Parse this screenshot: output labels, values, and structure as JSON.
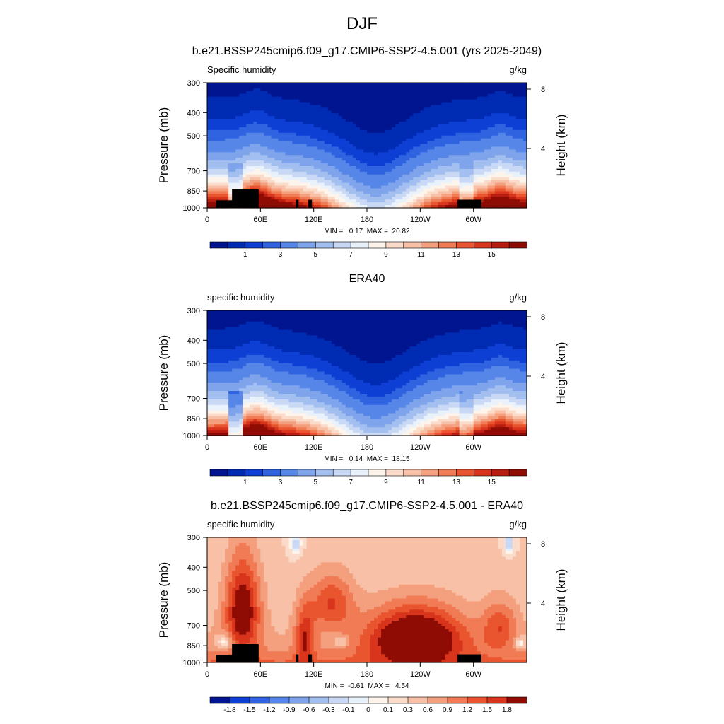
{
  "page_title": "DJF",
  "colors": {
    "positive_ramp": [
      "#fdf4ec",
      "#fbdccb",
      "#f8c0a6",
      "#f49f7d",
      "#f07b55",
      "#e9552f",
      "#d8351c",
      "#b81e10",
      "#8e0c04",
      "#7a0000"
    ],
    "negative_ramp": [
      "#e9f1fb",
      "#c8d8f5",
      "#a3bff0",
      "#7fa4ec",
      "#5686e8",
      "#2f63e0",
      "#0e3fd4",
      "#002bb3",
      "#00158f"
    ]
  },
  "chart_data": [
    {
      "type": "heatmap",
      "title": "b.e21.BSSP245cmip6.f09_g17.CMIP6-SSP2-4.5.001 (yrs 2025-2049)",
      "left_label": "Specific humidity",
      "units": "g/kg",
      "ylabel": "Pressure (mb)",
      "ylabel_right": "Height (km)",
      "x_ticks": [
        "0",
        "60E",
        "120E",
        "180",
        "120W",
        "60W"
      ],
      "x_tick_values": [
        0,
        60,
        120,
        180,
        240,
        300
      ],
      "xlim": [
        0,
        360
      ],
      "y_ticks": [
        "300",
        "400",
        "500",
        "700",
        "850",
        "1000"
      ],
      "y_tick_values": [
        300,
        400,
        500,
        700,
        850,
        1000
      ],
      "ylim": [
        1000,
        300
      ],
      "y_scale": "log",
      "right_ticks": [
        "8",
        "4"
      ],
      "right_tick_values": [
        8,
        4
      ],
      "stats": "MIN =   0.17  MAX =  20.82",
      "min": 0.17,
      "max": 20.82,
      "colorbar_labels": [
        "1",
        "3",
        "5",
        "7",
        "9",
        "11",
        "13",
        "15"
      ],
      "colorbar_levels": [
        0.5,
        1,
        1.5,
        2,
        3,
        4,
        5,
        6,
        7,
        8,
        9,
        10,
        11,
        12,
        13,
        14,
        15
      ]
    },
    {
      "type": "heatmap",
      "title": "ERA40",
      "left_label": "specific humidity",
      "units": "g/kg",
      "ylabel": "Pressure (mb)",
      "ylabel_right": "Height (km)",
      "x_ticks": [
        "0",
        "60E",
        "120E",
        "180",
        "120W",
        "60W"
      ],
      "x_tick_values": [
        0,
        60,
        120,
        180,
        240,
        300
      ],
      "xlim": [
        0,
        360
      ],
      "y_ticks": [
        "300",
        "400",
        "500",
        "700",
        "850",
        "1000"
      ],
      "y_tick_values": [
        300,
        400,
        500,
        700,
        850,
        1000
      ],
      "ylim": [
        1000,
        300
      ],
      "y_scale": "log",
      "right_ticks": [
        "8",
        "4"
      ],
      "right_tick_values": [
        8,
        4
      ],
      "stats": "MIN =   0.14  MAX =  18.15",
      "min": 0.14,
      "max": 18.15,
      "colorbar_labels": [
        "1",
        "3",
        "5",
        "7",
        "9",
        "11",
        "13",
        "15"
      ],
      "colorbar_levels": [
        0.5,
        1,
        1.5,
        2,
        3,
        4,
        5,
        6,
        7,
        8,
        9,
        10,
        11,
        12,
        13,
        14,
        15
      ]
    },
    {
      "type": "heatmap",
      "title": "b.e21.BSSP245cmip6.f09_g17.CMIP6-SSP2-4.5.001 - ERA40",
      "left_label": "specific humidity",
      "units": "g/kg",
      "ylabel": "Pressure (mb)",
      "ylabel_right": "Height (km)",
      "x_ticks": [
        "0",
        "60E",
        "120E",
        "180",
        "120W",
        "60W"
      ],
      "x_tick_values": [
        0,
        60,
        120,
        180,
        240,
        300
      ],
      "xlim": [
        0,
        360
      ],
      "y_ticks": [
        "300",
        "400",
        "500",
        "700",
        "850",
        "1000"
      ],
      "y_tick_values": [
        300,
        400,
        500,
        700,
        850,
        1000
      ],
      "ylim": [
        1000,
        300
      ],
      "y_scale": "log",
      "right_ticks": [
        "8",
        "4"
      ],
      "right_tick_values": [
        8,
        4
      ],
      "stats": "MIN =  -0.61  MAX =   4.54",
      "min": -0.61,
      "max": 4.54,
      "colorbar_labels": [
        "-1.8",
        "-1.5",
        "-1.2",
        "-0.9",
        "-0.6",
        "-0.3",
        "-0.1",
        "0",
        "0.1",
        "0.3",
        "0.6",
        "0.9",
        "1.2",
        "1.5",
        "1.8"
      ],
      "colorbar_levels": [
        -1.8,
        -1.5,
        -1.2,
        -0.9,
        -0.6,
        -0.3,
        -0.1,
        0,
        0.1,
        0.3,
        0.6,
        0.9,
        1.2,
        1.5,
        1.8
      ]
    }
  ]
}
